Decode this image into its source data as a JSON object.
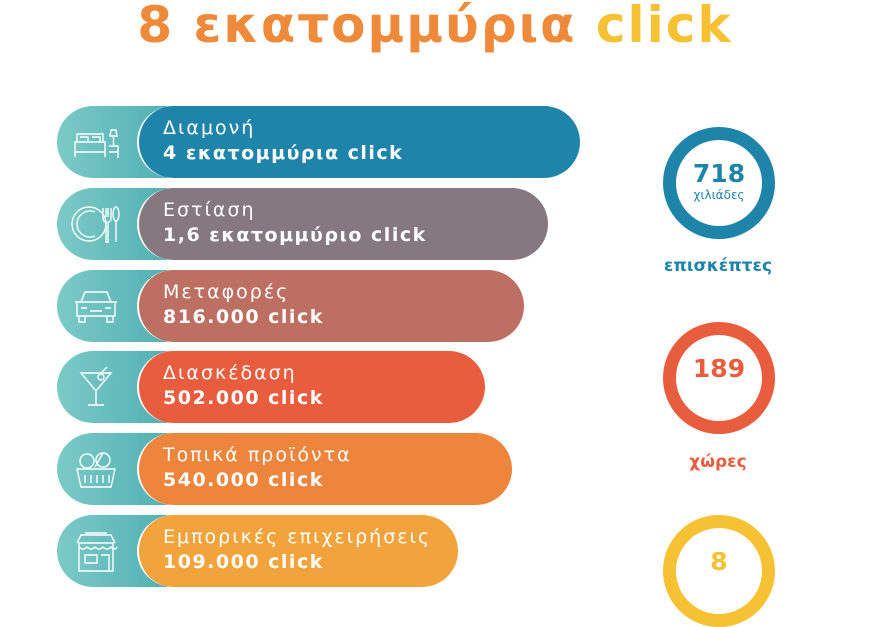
{
  "title": {
    "part1": "8 εκατομμύρια",
    "part2": "click",
    "colors": {
      "part1": "#ef8a3a",
      "part2": "#f6c233"
    }
  },
  "categories": [
    {
      "label": "Διαμονή",
      "value": "4 εκατομμύρια click",
      "icon": "bed-icon",
      "color": "#1f84a9"
    },
    {
      "label": "Εστίαση",
      "value": "1,6 εκατομμύριο click",
      "icon": "plate-cutlery-icon",
      "color": "#867880"
    },
    {
      "label": "Μεταφορές",
      "value": "816.000 click",
      "icon": "car-icon",
      "color": "#bd6f62"
    },
    {
      "label": "Διασκέδαση",
      "value": "502.000 click",
      "icon": "cocktail-icon",
      "color": "#e85d3e"
    },
    {
      "label": "Τοπικά προϊόντα",
      "value": "540.000 click",
      "icon": "basket-icon",
      "color": "#ee853c"
    },
    {
      "label": "Εμπορικές επιχειρήσεις",
      "value": "109.000 click",
      "icon": "shop-icon",
      "color": "#f2a33b"
    }
  ],
  "stats": [
    {
      "number": "718",
      "unit": "χιλιάδες",
      "label": "επισκέπτες",
      "color": "#1f84a9"
    },
    {
      "number": "189",
      "unit": "",
      "label": "χώρες",
      "color": "#e85d3e"
    },
    {
      "number": "8",
      "unit": "",
      "label": "",
      "color": "#f6c233"
    }
  ]
}
